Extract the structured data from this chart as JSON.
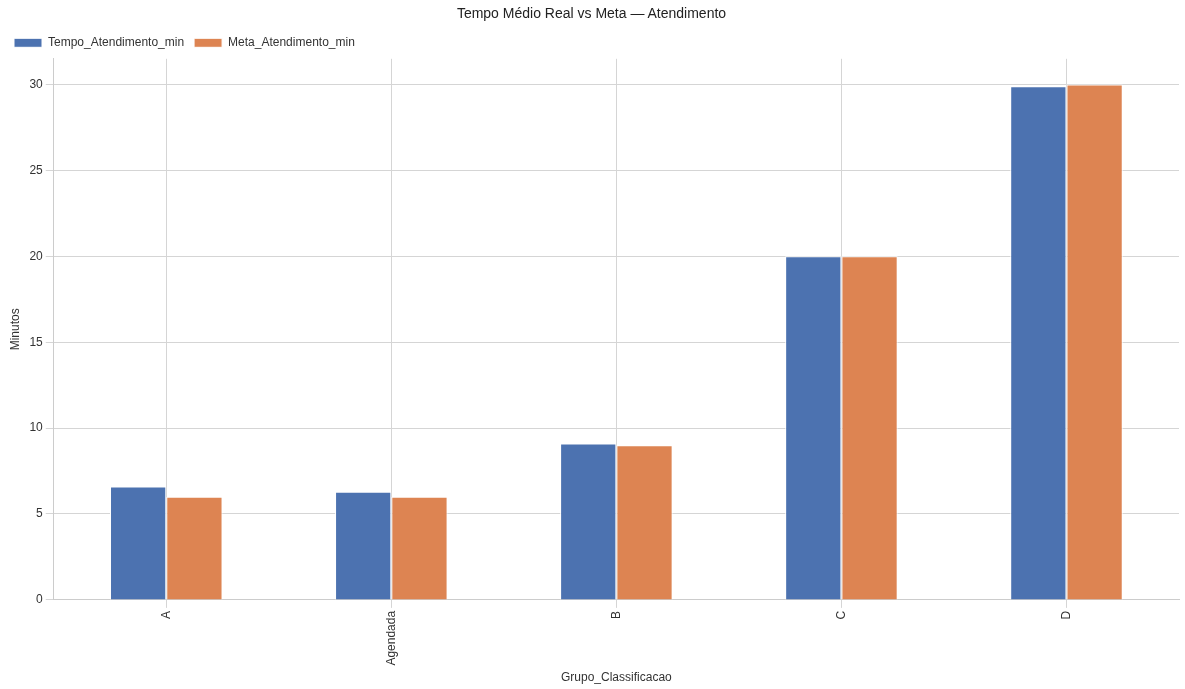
{
  "chart_data": {
    "type": "bar",
    "title": "Tempo Médio Real vs Meta — Atendimento",
    "xlabel": "Grupo_Classificacao",
    "ylabel": "Minutos",
    "categories": [
      "A",
      "Agendada",
      "B",
      "C",
      "D"
    ],
    "series": [
      {
        "name": "Tempo_Atendimento_min",
        "color": "#4c72b0",
        "values": [
          6.6,
          6.3,
          9.1,
          20,
          29.9
        ]
      },
      {
        "name": "Meta_Atendimento_min",
        "color": "#dd8452",
        "values": [
          6,
          6,
          9,
          20,
          30
        ]
      }
    ],
    "ylim": [
      0,
      31.5
    ],
    "yticks": [
      0,
      5,
      10,
      15,
      20,
      25,
      30
    ],
    "grid": true,
    "legend": "top left"
  }
}
